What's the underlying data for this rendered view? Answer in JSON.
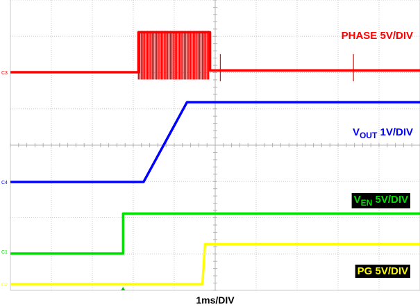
{
  "chart_data": {
    "type": "line",
    "grid": true,
    "divisions": {
      "horizontal": 10,
      "vertical": 8
    },
    "xlabel": "1ms/DIV",
    "xunit_ms_per_div": 1,
    "series": [
      {
        "id": "phase",
        "name_parts": [
          "PHASE 5V/DIV"
        ],
        "color": "#ff0000",
        "label_background": "",
        "channel_marker": "C3",
        "volts_per_div": 5,
        "samples_ms_vs_div": [
          [
            0,
            0.0
          ],
          [
            5.0,
            0.0
          ],
          [
            5.0,
            1.1
          ],
          [
            7.8,
            1.1
          ],
          [
            7.8,
            0.05
          ],
          [
            16.0,
            0.05
          ]
        ],
        "notes": "switching burst between ~5.0 and ~7.8 ms"
      },
      {
        "id": "vout",
        "name_parts": [
          "V",
          "OUT",
          " 1V/DIV"
        ],
        "color": "#0000ff",
        "label_background": "",
        "channel_marker": "C4",
        "volts_per_div": 1,
        "samples_ms_vs_div": [
          [
            0,
            0.0
          ],
          [
            5.2,
            0.0
          ],
          [
            6.9,
            2.2
          ],
          [
            16.0,
            2.2
          ]
        ]
      },
      {
        "id": "ven",
        "name_parts": [
          "V",
          "EN",
          " 5V/DIV"
        ],
        "color": "#00e000",
        "label_background": "#000000",
        "channel_marker": "C1",
        "volts_per_div": 5,
        "samples_ms_vs_div": [
          [
            0,
            0.0
          ],
          [
            4.4,
            0.0
          ],
          [
            4.4,
            1.1
          ],
          [
            16.0,
            1.1
          ]
        ]
      },
      {
        "id": "pg",
        "name_parts": [
          "PG 5V/DIV"
        ],
        "color": "#ffff00",
        "label_background": "#000000",
        "channel_marker": "C2",
        "volts_per_div": 5,
        "samples_ms_vs_div": [
          [
            0,
            0.0
          ],
          [
            7.5,
            0.0
          ],
          [
            7.6,
            1.1
          ],
          [
            16.0,
            1.1
          ]
        ]
      }
    ]
  }
}
